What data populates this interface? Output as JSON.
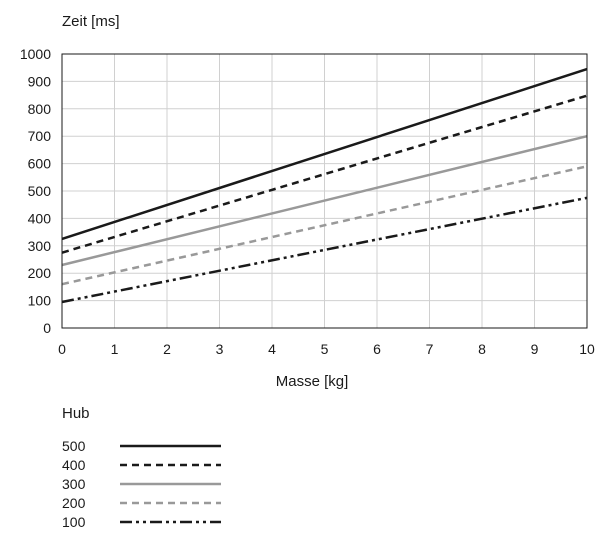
{
  "chart_data": {
    "type": "line",
    "title": "",
    "ylabel": "Zeit [ms]",
    "xlabel": "Masse [kg]",
    "xlim": [
      0,
      10
    ],
    "ylim": [
      0,
      1000
    ],
    "x_ticks": [
      0,
      1,
      2,
      3,
      4,
      5,
      6,
      7,
      8,
      9,
      10
    ],
    "y_ticks": [
      0,
      100,
      200,
      300,
      400,
      500,
      600,
      700,
      800,
      900,
      1000
    ],
    "grid": true,
    "legend": {
      "title": "Hub",
      "placement": "bottom-left"
    },
    "x": [
      0,
      10
    ],
    "series": [
      {
        "name": "500",
        "values": [
          325,
          945
        ],
        "color": "#1a1a1a",
        "style": "solid"
      },
      {
        "name": "400",
        "values": [
          275,
          848
        ],
        "color": "#1a1a1a",
        "style": "dashed"
      },
      {
        "name": "300",
        "values": [
          230,
          700
        ],
        "color": "#999999",
        "style": "solid"
      },
      {
        "name": "200",
        "values": [
          160,
          590
        ],
        "color": "#999999",
        "style": "dashed"
      },
      {
        "name": "100",
        "values": [
          95,
          475
        ],
        "color": "#1a1a1a",
        "style": "dashdotdot"
      }
    ]
  }
}
